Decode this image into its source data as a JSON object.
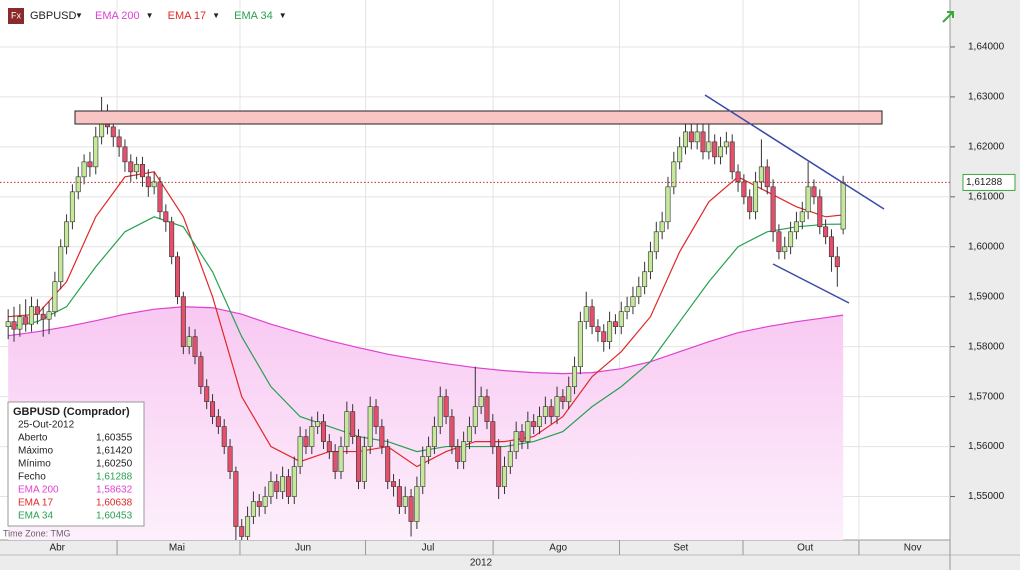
{
  "chart_data": {
    "type": "candlestick",
    "symbol_menu": "GBPUSD",
    "series": [
      {
        "name": "GBPUSD",
        "up_color": "#c5e89a",
        "down_color": "#e4506c",
        "open": [
          1.584,
          1.585,
          1.5835,
          1.586,
          1.5845,
          1.588,
          1.5865,
          1.5855,
          1.587,
          1.593,
          1.6,
          1.605,
          1.611,
          1.614,
          1.617,
          1.616,
          1.622,
          1.627,
          1.624,
          1.622,
          1.62,
          1.617,
          1.615,
          1.6165,
          1.614,
          1.612,
          1.613,
          1.607,
          1.605,
          1.598,
          1.59,
          1.58,
          1.582,
          1.578,
          1.572,
          1.569,
          1.566,
          1.564,
          1.56,
          1.555,
          1.544,
          1.542,
          1.546,
          1.549,
          1.548,
          1.55,
          1.553,
          1.551,
          1.554,
          1.55,
          1.556,
          1.562,
          1.56,
          1.564,
          1.565,
          1.561,
          1.559,
          1.555,
          1.56,
          1.567,
          1.562,
          1.553,
          1.56,
          1.568,
          1.564,
          1.56,
          1.553,
          1.552,
          1.548,
          1.55,
          1.545,
          1.552,
          1.558,
          1.56,
          1.564,
          1.57,
          1.566,
          1.56,
          1.557,
          1.561,
          1.564,
          1.568,
          1.57,
          1.565,
          1.56,
          1.552,
          1.556,
          1.559,
          1.563,
          1.561,
          1.565,
          1.564,
          1.566,
          1.568,
          1.566,
          1.57,
          1.569,
          1.572,
          1.576,
          1.585,
          1.588,
          1.584,
          1.583,
          1.581,
          1.585,
          1.584,
          1.587,
          1.588,
          1.59,
          1.592,
          1.595,
          1.599,
          1.603,
          1.605,
          1.612,
          1.617,
          1.62,
          1.623,
          1.621,
          1.623,
          1.619,
          1.621,
          1.618,
          1.62,
          1.621,
          1.615,
          1.613,
          1.61,
          1.607,
          1.613,
          1.616,
          1.612,
          1.603,
          1.599,
          1.6,
          1.603,
          1.605,
          1.607,
          1.612,
          1.61,
          1.604,
          1.602,
          1.598,
          1.60355
        ],
        "high": [
          1.5875,
          1.588,
          1.5885,
          1.5895,
          1.59,
          1.5895,
          1.588,
          1.589,
          1.595,
          1.6015,
          1.6065,
          1.6125,
          1.616,
          1.6185,
          1.619,
          1.624,
          1.63,
          1.6285,
          1.6255,
          1.6235,
          1.6215,
          1.6185,
          1.618,
          1.618,
          1.6155,
          1.615,
          1.614,
          1.6085,
          1.606,
          1.599,
          1.591,
          1.584,
          1.5835,
          1.579,
          1.5735,
          1.5705,
          1.5675,
          1.5655,
          1.5615,
          1.556,
          1.5455,
          1.548,
          1.551,
          1.5505,
          1.552,
          1.555,
          1.5545,
          1.556,
          1.5555,
          1.558,
          1.564,
          1.5635,
          1.566,
          1.567,
          1.5665,
          1.5625,
          1.5605,
          1.562,
          1.569,
          1.5685,
          1.5635,
          1.562,
          1.57,
          1.5695,
          1.5655,
          1.5615,
          1.5545,
          1.5535,
          1.552,
          1.5515,
          1.554,
          1.56,
          1.562,
          1.566,
          1.572,
          1.5715,
          1.5675,
          1.5615,
          1.563,
          1.566,
          1.576,
          1.572,
          1.5715,
          1.5665,
          1.5615,
          1.558,
          1.561,
          1.565,
          1.5645,
          1.567,
          1.5665,
          1.568,
          1.57,
          1.5695,
          1.572,
          1.5715,
          1.574,
          1.578,
          1.587,
          1.591,
          1.5895,
          1.5855,
          1.5845,
          1.587,
          1.5865,
          1.589,
          1.59,
          1.592,
          1.594,
          1.597,
          1.601,
          1.605,
          1.607,
          1.614,
          1.619,
          1.622,
          1.6265,
          1.626,
          1.6265,
          1.6245,
          1.6265,
          1.6225,
          1.622,
          1.623,
          1.6225,
          1.6165,
          1.6145,
          1.6115,
          1.615,
          1.6215,
          1.6175,
          1.6135,
          1.6045,
          1.602,
          1.605,
          1.607,
          1.609,
          1.617,
          1.6135,
          1.6115,
          1.6055,
          1.6035,
          1.6,
          1.6142
        ],
        "low": [
          1.5815,
          1.581,
          1.582,
          1.583,
          1.583,
          1.5845,
          1.582,
          1.5825,
          1.586,
          1.5915,
          1.5985,
          1.6035,
          1.6095,
          1.6125,
          1.614,
          1.6145,
          1.6205,
          1.6225,
          1.62,
          1.618,
          1.615,
          1.613,
          1.6135,
          1.612,
          1.61,
          1.6105,
          1.6055,
          1.603,
          1.5965,
          1.5885,
          1.5785,
          1.5785,
          1.5765,
          1.5705,
          1.5675,
          1.5645,
          1.5625,
          1.5585,
          1.5535,
          1.54,
          1.538,
          1.5405,
          1.5445,
          1.546,
          1.5465,
          1.5485,
          1.5495,
          1.5495,
          1.5485,
          1.5485,
          1.5545,
          1.5585,
          1.5585,
          1.5625,
          1.5595,
          1.5575,
          1.5535,
          1.5535,
          1.5585,
          1.5605,
          1.5515,
          1.5515,
          1.5585,
          1.5625,
          1.5585,
          1.5515,
          1.55,
          1.5465,
          1.5465,
          1.542,
          1.5435,
          1.5505,
          1.5565,
          1.5585,
          1.5625,
          1.5645,
          1.5585,
          1.5555,
          1.5555,
          1.5595,
          1.5625,
          1.5665,
          1.5635,
          1.5585,
          1.5495,
          1.5505,
          1.5545,
          1.5575,
          1.5595,
          1.5595,
          1.5625,
          1.5625,
          1.5645,
          1.5645,
          1.5645,
          1.5675,
          1.5675,
          1.5705,
          1.5745,
          1.5835,
          1.5825,
          1.581,
          1.579,
          1.5795,
          1.5825,
          1.5825,
          1.5855,
          1.5865,
          1.5885,
          1.5905,
          1.5935,
          1.5975,
          1.6015,
          1.6035,
          1.6105,
          1.6155,
          1.6185,
          1.6195,
          1.6195,
          1.6175,
          1.6175,
          1.6165,
          1.6165,
          1.6185,
          1.6135,
          1.611,
          1.6085,
          1.6055,
          1.6055,
          1.6115,
          1.6105,
          1.601,
          1.5975,
          1.5975,
          1.5985,
          1.6015,
          1.6035,
          1.6055,
          1.6085,
          1.6025,
          1.6005,
          1.595,
          1.592,
          1.6025
        ],
        "close": [
          1.585,
          1.5835,
          1.586,
          1.5845,
          1.588,
          1.5865,
          1.5855,
          1.587,
          1.593,
          1.6,
          1.605,
          1.611,
          1.614,
          1.617,
          1.616,
          1.622,
          1.627,
          1.624,
          1.622,
          1.62,
          1.617,
          1.615,
          1.6165,
          1.614,
          1.612,
          1.613,
          1.607,
          1.605,
          1.598,
          1.59,
          1.58,
          1.582,
          1.578,
          1.572,
          1.569,
          1.566,
          1.564,
          1.56,
          1.555,
          1.544,
          1.542,
          1.546,
          1.549,
          1.548,
          1.55,
          1.553,
          1.551,
          1.554,
          1.55,
          1.556,
          1.562,
          1.56,
          1.564,
          1.565,
          1.561,
          1.559,
          1.555,
          1.56,
          1.567,
          1.562,
          1.553,
          1.56,
          1.568,
          1.564,
          1.56,
          1.553,
          1.552,
          1.548,
          1.55,
          1.545,
          1.552,
          1.558,
          1.56,
          1.564,
          1.57,
          1.566,
          1.56,
          1.557,
          1.561,
          1.564,
          1.568,
          1.57,
          1.565,
          1.56,
          1.552,
          1.556,
          1.559,
          1.563,
          1.561,
          1.565,
          1.564,
          1.566,
          1.568,
          1.566,
          1.57,
          1.569,
          1.572,
          1.576,
          1.585,
          1.588,
          1.584,
          1.583,
          1.581,
          1.585,
          1.584,
          1.587,
          1.588,
          1.59,
          1.592,
          1.595,
          1.599,
          1.603,
          1.605,
          1.612,
          1.617,
          1.62,
          1.623,
          1.621,
          1.623,
          1.619,
          1.621,
          1.618,
          1.62,
          1.621,
          1.615,
          1.613,
          1.61,
          1.607,
          1.613,
          1.616,
          1.612,
          1.603,
          1.599,
          1.6,
          1.603,
          1.605,
          1.607,
          1.612,
          1.61,
          1.604,
          1.602,
          1.598,
          1.596,
          1.61288
        ]
      },
      {
        "name": "EMA 200",
        "color": "#e040d0",
        "fill": true,
        "x": [
          0,
          5,
          10,
          15,
          20,
          25,
          30,
          35,
          40,
          45,
          50,
          55,
          60,
          65,
          70,
          75,
          80,
          85,
          90,
          95,
          100,
          105,
          110,
          115,
          120,
          125,
          130,
          135,
          140,
          143
        ],
        "values": [
          1.5822,
          1.583,
          1.584,
          1.5852,
          1.5865,
          1.5875,
          1.588,
          1.5878,
          1.5865,
          1.5845,
          1.5828,
          1.5812,
          1.5798,
          1.5785,
          1.5775,
          1.5766,
          1.5758,
          1.5752,
          1.5748,
          1.5746,
          1.5748,
          1.5756,
          1.577,
          1.579,
          1.581,
          1.5828,
          1.584,
          1.585,
          1.5858,
          1.58632
        ]
      },
      {
        "name": "EMA 17",
        "color": "#e02828",
        "x": [
          0,
          5,
          10,
          15,
          20,
          25,
          30,
          35,
          40,
          45,
          50,
          55,
          60,
          65,
          70,
          75,
          80,
          85,
          90,
          95,
          100,
          105,
          110,
          115,
          120,
          125,
          130,
          135,
          140,
          143
        ],
        "values": [
          1.586,
          1.5865,
          1.593,
          1.606,
          1.614,
          1.615,
          1.606,
          1.59,
          1.57,
          1.56,
          1.557,
          1.559,
          1.559,
          1.56,
          1.556,
          1.559,
          1.561,
          1.561,
          1.562,
          1.566,
          1.574,
          1.579,
          1.586,
          1.599,
          1.609,
          1.614,
          1.611,
          1.608,
          1.606,
          1.60638
        ]
      },
      {
        "name": "EMA 34",
        "color": "#28a050",
        "x": [
          0,
          5,
          10,
          15,
          20,
          25,
          30,
          35,
          40,
          45,
          50,
          55,
          60,
          65,
          70,
          75,
          80,
          85,
          90,
          95,
          100,
          105,
          110,
          115,
          120,
          125,
          130,
          135,
          140,
          143
        ],
        "values": [
          1.584,
          1.585,
          1.588,
          1.596,
          1.603,
          1.606,
          1.604,
          1.595,
          1.582,
          1.572,
          1.566,
          1.564,
          1.562,
          1.561,
          1.559,
          1.56,
          1.56,
          1.56,
          1.561,
          1.563,
          1.568,
          1.572,
          1.577,
          1.585,
          1.593,
          1.6,
          1.603,
          1.604,
          1.6045,
          1.60453
        ]
      }
    ],
    "xlim": [
      -1.4,
      161.3
    ],
    "xticks": [
      {
        "value": 8.4,
        "label": "Abr"
      },
      {
        "value": 28.9,
        "label": "Mai"
      },
      {
        "value": 50.5,
        "label": "Jun"
      },
      {
        "value": 71.9,
        "label": "Jul"
      },
      {
        "value": 94.2,
        "label": "Ago"
      },
      {
        "value": 115.2,
        "label": "Set"
      },
      {
        "value": 136.5,
        "label": "Out"
      },
      {
        "value": 154.9,
        "label": "Nov"
      }
    ],
    "year_label": "2012",
    "ylim": [
      1.5413,
      1.6494
    ],
    "yticks": [
      {
        "value": 1.55,
        "label": "1,55000"
      },
      {
        "value": 1.56,
        "label": "1,56000"
      },
      {
        "value": 1.57,
        "label": "1,57000"
      },
      {
        "value": 1.58,
        "label": "1,58000"
      },
      {
        "value": 1.59,
        "label": "1,59000"
      },
      {
        "value": 1.6,
        "label": "1,60000"
      },
      {
        "value": 1.61,
        "label": "1,61000"
      },
      {
        "value": 1.62,
        "label": "1,62000"
      },
      {
        "value": 1.63,
        "label": "1,63000"
      },
      {
        "value": 1.64,
        "label": "1,64000"
      }
    ],
    "grid": true,
    "last_price_label": "1,61288",
    "time_zone": "Time Zone: TMG",
    "info_box": {
      "title": "GBPUSD (Comprador)",
      "date": "25-Out-2012",
      "rows": [
        [
          "Aberto",
          "1,60355"
        ],
        [
          "Máximo",
          "1,61420"
        ],
        [
          "Mínimo",
          "1,60250"
        ],
        [
          "Fecho",
          "1,61288"
        ],
        [
          "EMA 200",
          "1,58632"
        ],
        [
          "EMA 17",
          "1,60638"
        ],
        [
          "EMA 34",
          "1,60453"
        ]
      ]
    }
  }
}
